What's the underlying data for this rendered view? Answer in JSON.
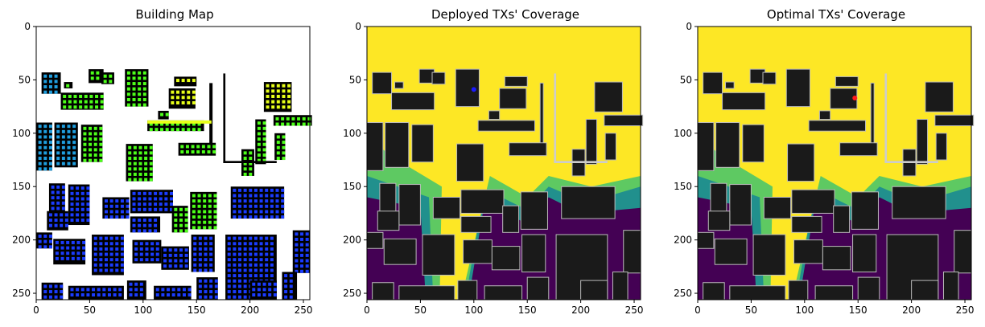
{
  "chart_data": [
    {
      "type": "heatmap",
      "title": "Building Map",
      "xlim": [
        0,
        256
      ],
      "ylim": [
        256,
        0
      ],
      "xticks": [
        "0",
        "50",
        "100",
        "150",
        "200",
        "250"
      ],
      "yticks": [
        "0",
        "50",
        "100",
        "150",
        "200",
        "250"
      ],
      "grid": false,
      "colors": {
        "background": "#ffffff",
        "building": "#000000",
        "cells": [
          "#1a3cff",
          "#1f9fe0",
          "#4dff1a",
          "#e8ff1a"
        ]
      }
    },
    {
      "type": "heatmap",
      "title": "Deployed TXs' Coverage",
      "xlim": [
        0,
        256
      ],
      "ylim": [
        256,
        0
      ],
      "xticks": [
        "0",
        "50",
        "100",
        "150",
        "200",
        "250"
      ],
      "yticks": [
        "0",
        "50",
        "100",
        "150",
        "200",
        "250"
      ],
      "grid": false,
      "colormap": [
        "#440154",
        "#21908d",
        "#5ec962",
        "#fde725"
      ],
      "tx_marker": {
        "x": 100,
        "y": 59,
        "color": "#1a1aff"
      }
    },
    {
      "type": "heatmap",
      "title": "Optimal TXs' Coverage",
      "xlim": [
        0,
        256
      ],
      "ylim": [
        256,
        0
      ],
      "xticks": [
        "0",
        "50",
        "100",
        "150",
        "200",
        "250"
      ],
      "yticks": [
        "0",
        "50",
        "100",
        "150",
        "200",
        "250"
      ],
      "grid": false,
      "colormap": [
        "#440154",
        "#21908d",
        "#5ec962",
        "#fde725"
      ],
      "tx_marker": {
        "x": 147,
        "y": 67,
        "color": "#ff1a1a"
      }
    }
  ]
}
